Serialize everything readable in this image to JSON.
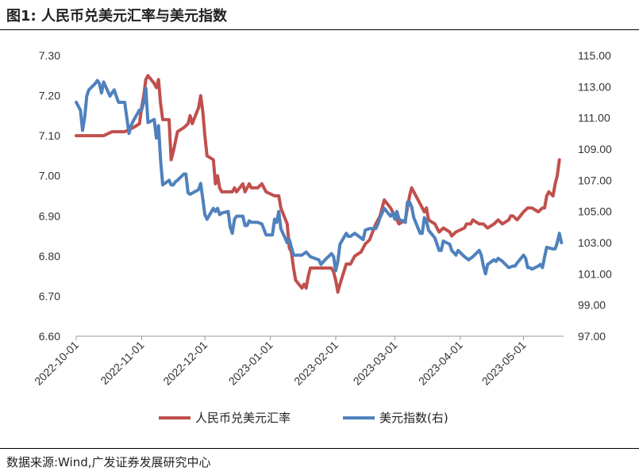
{
  "figure": {
    "title": "图1:   人民币兑美元汇率与美元指数",
    "source": "数据来源:Wind,广发证券发展研究中心"
  },
  "colors": {
    "cny": "#C0504D",
    "dxy": "#4F81BD",
    "axis": "#999999"
  },
  "chart_data": {
    "type": "line",
    "title": "人民币兑美元汇率与美元指数",
    "x_range": [
      "2022-10-01",
      "2023-05-20"
    ],
    "x_ticks": [
      "2022-10-01",
      "2022-11-01",
      "2022-12-01",
      "2023-01-01",
      "2023-02-01",
      "2023-03-01",
      "2023-04-01",
      "2023-05-01"
    ],
    "y_left": {
      "min": 6.6,
      "max": 7.3,
      "ticks": [
        "6.60",
        "6.70",
        "6.80",
        "6.90",
        "7.00",
        "7.10",
        "7.20",
        "7.30"
      ]
    },
    "y_right": {
      "min": 97,
      "max": 115,
      "ticks": [
        "97.00",
        "99.00",
        "101.00",
        "103.00",
        "105.00",
        "107.00",
        "109.00",
        "111.00",
        "113.00",
        "115.00"
      ]
    },
    "legend_position": "bottom",
    "series": [
      {
        "name": "人民币兑美元汇率",
        "axis": "left",
        "points": [
          [
            "2022-10-01",
            7.1
          ],
          [
            "2022-10-10",
            7.1
          ],
          [
            "2022-10-14",
            7.1
          ],
          [
            "2022-10-18",
            7.11
          ],
          [
            "2022-10-24",
            7.11
          ],
          [
            "2022-10-28",
            7.12
          ],
          [
            "2022-10-31",
            7.13
          ],
          [
            "2022-11-01",
            7.17
          ],
          [
            "2022-11-02",
            7.2
          ],
          [
            "2022-11-03",
            7.24
          ],
          [
            "2022-11-04",
            7.25
          ],
          [
            "2022-11-07",
            7.23
          ],
          [
            "2022-11-08",
            7.22
          ],
          [
            "2022-11-09",
            7.24
          ],
          [
            "2022-11-10",
            7.18
          ],
          [
            "2022-11-11",
            7.14
          ],
          [
            "2022-11-14",
            7.14
          ],
          [
            "2022-11-15",
            7.04
          ],
          [
            "2022-11-16",
            7.06
          ],
          [
            "2022-11-18",
            7.11
          ],
          [
            "2022-11-21",
            7.12
          ],
          [
            "2022-11-23",
            7.13
          ],
          [
            "2022-11-24",
            7.15
          ],
          [
            "2022-11-25",
            7.13
          ],
          [
            "2022-11-28",
            7.17
          ],
          [
            "2022-11-29",
            7.2
          ],
          [
            "2022-11-30",
            7.16
          ],
          [
            "2022-12-01",
            7.1
          ],
          [
            "2022-12-02",
            7.05
          ],
          [
            "2022-12-05",
            7.04
          ],
          [
            "2022-12-06",
            6.98
          ],
          [
            "2022-12-07",
            7.0
          ],
          [
            "2022-12-08",
            6.97
          ],
          [
            "2022-12-09",
            6.96
          ],
          [
            "2022-12-12",
            6.96
          ],
          [
            "2022-12-14",
            6.96
          ],
          [
            "2022-12-15",
            6.97
          ],
          [
            "2022-12-16",
            6.96
          ],
          [
            "2022-12-19",
            6.98
          ],
          [
            "2022-12-20",
            6.96
          ],
          [
            "2022-12-21",
            6.97
          ],
          [
            "2022-12-22",
            6.98
          ],
          [
            "2022-12-23",
            6.97
          ],
          [
            "2022-12-26",
            6.97
          ],
          [
            "2022-12-28",
            6.98
          ],
          [
            "2022-12-30",
            6.96
          ],
          [
            "2023-01-03",
            6.95
          ],
          [
            "2023-01-05",
            6.95
          ],
          [
            "2023-01-06",
            6.92
          ],
          [
            "2023-01-09",
            6.88
          ],
          [
            "2023-01-10",
            6.82
          ],
          [
            "2023-01-11",
            6.81
          ],
          [
            "2023-01-12",
            6.77
          ],
          [
            "2023-01-13",
            6.74
          ],
          [
            "2023-01-16",
            6.72
          ],
          [
            "2023-01-17",
            6.73
          ],
          [
            "2023-01-18",
            6.72
          ],
          [
            "2023-01-19",
            6.75
          ],
          [
            "2023-01-20",
            6.77
          ],
          [
            "2023-01-25",
            6.77
          ],
          [
            "2023-01-30",
            6.77
          ],
          [
            "2023-01-31",
            6.76
          ],
          [
            "2023-02-01",
            6.74
          ],
          [
            "2023-02-02",
            6.71
          ],
          [
            "2023-02-03",
            6.73
          ],
          [
            "2023-02-06",
            6.78
          ],
          [
            "2023-02-08",
            6.78
          ],
          [
            "2023-02-10",
            6.8
          ],
          [
            "2023-02-13",
            6.81
          ],
          [
            "2023-02-15",
            6.83
          ],
          [
            "2023-02-17",
            6.84
          ],
          [
            "2023-02-20",
            6.88
          ],
          [
            "2023-02-22",
            6.9
          ],
          [
            "2023-02-24",
            6.94
          ],
          [
            "2023-02-27",
            6.92
          ],
          [
            "2023-02-28",
            6.91
          ],
          [
            "2023-03-01",
            6.9
          ],
          [
            "2023-03-03",
            6.88
          ],
          [
            "2023-03-06",
            6.89
          ],
          [
            "2023-03-08",
            6.95
          ],
          [
            "2023-03-09",
            6.97
          ],
          [
            "2023-03-10",
            6.96
          ],
          [
            "2023-03-13",
            6.93
          ],
          [
            "2023-03-15",
            6.91
          ],
          [
            "2023-03-16",
            6.92
          ],
          [
            "2023-03-17",
            6.89
          ],
          [
            "2023-03-20",
            6.88
          ],
          [
            "2023-03-21",
            6.87
          ],
          [
            "2023-03-22",
            6.86
          ],
          [
            "2023-03-24",
            6.87
          ],
          [
            "2023-03-27",
            6.86
          ],
          [
            "2023-03-28",
            6.85
          ],
          [
            "2023-03-30",
            6.86
          ],
          [
            "2023-04-03",
            6.87
          ],
          [
            "2023-04-04",
            6.88
          ],
          [
            "2023-04-06",
            6.88
          ],
          [
            "2023-04-07",
            6.89
          ],
          [
            "2023-04-10",
            6.88
          ],
          [
            "2023-04-12",
            6.88
          ],
          [
            "2023-04-14",
            6.87
          ],
          [
            "2023-04-17",
            6.88
          ],
          [
            "2023-04-19",
            6.89
          ],
          [
            "2023-04-21",
            6.88
          ],
          [
            "2023-04-24",
            6.89
          ],
          [
            "2023-04-25",
            6.9
          ],
          [
            "2023-04-26",
            6.9
          ],
          [
            "2023-04-28",
            6.89
          ],
          [
            "2023-05-01",
            6.91
          ],
          [
            "2023-05-03",
            6.92
          ],
          [
            "2023-05-05",
            6.92
          ],
          [
            "2023-05-08",
            6.91
          ],
          [
            "2023-05-10",
            6.92
          ],
          [
            "2023-05-11",
            6.92
          ],
          [
            "2023-05-12",
            6.95
          ],
          [
            "2023-05-13",
            6.96
          ],
          [
            "2023-05-15",
            6.95
          ],
          [
            "2023-05-16",
            6.98
          ],
          [
            "2023-05-17",
            7.0
          ],
          [
            "2023-05-18",
            7.04
          ]
        ]
      },
      {
        "name": "美元指数(右)",
        "axis": "right",
        "points": [
          [
            "2022-10-01",
            112.0
          ],
          [
            "2022-10-03",
            111.5
          ],
          [
            "2022-10-04",
            110.2
          ],
          [
            "2022-10-05",
            111.0
          ],
          [
            "2022-10-06",
            112.4
          ],
          [
            "2022-10-07",
            112.8
          ],
          [
            "2022-10-10",
            113.2
          ],
          [
            "2022-10-11",
            113.4
          ],
          [
            "2022-10-12",
            113.2
          ],
          [
            "2022-10-13",
            112.6
          ],
          [
            "2022-10-14",
            113.3
          ],
          [
            "2022-10-17",
            112.4
          ],
          [
            "2022-10-19",
            112.8
          ],
          [
            "2022-10-21",
            112.0
          ],
          [
            "2022-10-24",
            112.0
          ],
          [
            "2022-10-25",
            111.0
          ],
          [
            "2022-10-26",
            110.0
          ],
          [
            "2022-10-27",
            110.5
          ],
          [
            "2022-10-28",
            110.8
          ],
          [
            "2022-10-31",
            111.5
          ],
          [
            "2022-11-01",
            111.5
          ],
          [
            "2022-11-02",
            112.0
          ],
          [
            "2022-11-03",
            112.9
          ],
          [
            "2022-11-04",
            110.7
          ],
          [
            "2022-11-07",
            110.9
          ],
          [
            "2022-11-08",
            109.7
          ],
          [
            "2022-11-09",
            110.5
          ],
          [
            "2022-11-10",
            108.3
          ],
          [
            "2022-11-11",
            106.7
          ],
          [
            "2022-11-14",
            107.0
          ],
          [
            "2022-11-15",
            106.7
          ],
          [
            "2022-11-16",
            106.7
          ],
          [
            "2022-11-17",
            106.9
          ],
          [
            "2022-11-18",
            107.0
          ],
          [
            "2022-11-21",
            107.4
          ],
          [
            "2022-11-22",
            107.4
          ],
          [
            "2022-11-23",
            106.2
          ],
          [
            "2022-11-24",
            106.1
          ],
          [
            "2022-11-28",
            106.4
          ],
          [
            "2022-11-29",
            106.8
          ],
          [
            "2022-11-30",
            105.8
          ],
          [
            "2022-12-01",
            104.8
          ],
          [
            "2022-12-02",
            104.5
          ],
          [
            "2022-12-05",
            105.2
          ],
          [
            "2022-12-06",
            105.0
          ],
          [
            "2022-12-07",
            105.2
          ],
          [
            "2022-12-08",
            104.8
          ],
          [
            "2022-12-09",
            104.9
          ],
          [
            "2022-12-12",
            105.0
          ],
          [
            "2022-12-13",
            104.0
          ],
          [
            "2022-12-14",
            103.6
          ],
          [
            "2022-12-15",
            104.5
          ],
          [
            "2022-12-16",
            104.7
          ],
          [
            "2022-12-19",
            104.7
          ],
          [
            "2022-12-20",
            104.1
          ],
          [
            "2022-12-21",
            104.1
          ],
          [
            "2022-12-22",
            104.4
          ],
          [
            "2022-12-23",
            104.3
          ],
          [
            "2022-12-26",
            104.3
          ],
          [
            "2022-12-28",
            104.2
          ],
          [
            "2022-12-30",
            103.5
          ],
          [
            "2023-01-02",
            103.5
          ],
          [
            "2023-01-03",
            104.5
          ],
          [
            "2023-01-04",
            104.3
          ],
          [
            "2023-01-05",
            105.0
          ],
          [
            "2023-01-06",
            103.9
          ],
          [
            "2023-01-09",
            103.0
          ],
          [
            "2023-01-10",
            103.2
          ],
          [
            "2023-01-12",
            102.2
          ],
          [
            "2023-01-13",
            102.2
          ],
          [
            "2023-01-16",
            102.2
          ],
          [
            "2023-01-18",
            102.4
          ],
          [
            "2023-01-20",
            102.1
          ],
          [
            "2023-01-24",
            101.9
          ],
          [
            "2023-01-25",
            101.6
          ],
          [
            "2023-01-27",
            101.9
          ],
          [
            "2023-01-30",
            102.3
          ],
          [
            "2023-01-31",
            102.1
          ],
          [
            "2023-02-01",
            101.2
          ],
          [
            "2023-02-02",
            101.8
          ],
          [
            "2023-02-03",
            102.9
          ],
          [
            "2023-02-06",
            103.6
          ],
          [
            "2023-02-07",
            103.4
          ],
          [
            "2023-02-08",
            103.4
          ],
          [
            "2023-02-10",
            103.6
          ],
          [
            "2023-02-13",
            103.3
          ],
          [
            "2023-02-14",
            103.2
          ],
          [
            "2023-02-15",
            103.8
          ],
          [
            "2023-02-17",
            103.9
          ],
          [
            "2023-02-20",
            103.9
          ],
          [
            "2023-02-21",
            104.2
          ],
          [
            "2023-02-22",
            104.6
          ],
          [
            "2023-02-24",
            105.2
          ],
          [
            "2023-02-27",
            104.7
          ],
          [
            "2023-02-28",
            104.9
          ],
          [
            "2023-03-01",
            104.5
          ],
          [
            "2023-03-02",
            105.0
          ],
          [
            "2023-03-03",
            104.5
          ],
          [
            "2023-03-06",
            104.3
          ],
          [
            "2023-03-07",
            105.6
          ],
          [
            "2023-03-08",
            105.6
          ],
          [
            "2023-03-09",
            105.3
          ],
          [
            "2023-03-10",
            104.6
          ],
          [
            "2023-03-13",
            103.6
          ],
          [
            "2023-03-14",
            103.6
          ],
          [
            "2023-03-15",
            104.6
          ],
          [
            "2023-03-16",
            104.4
          ],
          [
            "2023-03-17",
            103.8
          ],
          [
            "2023-03-20",
            103.3
          ],
          [
            "2023-03-22",
            102.5
          ],
          [
            "2023-03-23",
            102.5
          ],
          [
            "2023-03-24",
            103.1
          ],
          [
            "2023-03-27",
            102.9
          ],
          [
            "2023-03-28",
            102.5
          ],
          [
            "2023-03-30",
            102.2
          ],
          [
            "2023-03-31",
            102.5
          ],
          [
            "2023-04-03",
            102.1
          ],
          [
            "2023-04-05",
            101.9
          ],
          [
            "2023-04-07",
            102.1
          ],
          [
            "2023-04-10",
            102.5
          ],
          [
            "2023-04-11",
            102.2
          ],
          [
            "2023-04-12",
            101.5
          ],
          [
            "2023-04-13",
            101.0
          ],
          [
            "2023-04-14",
            101.6
          ],
          [
            "2023-04-17",
            101.9
          ],
          [
            "2023-04-18",
            101.8
          ],
          [
            "2023-04-19",
            102.0
          ],
          [
            "2023-04-20",
            101.9
          ],
          [
            "2023-04-21",
            101.8
          ],
          [
            "2023-04-24",
            101.4
          ],
          [
            "2023-04-26",
            101.5
          ],
          [
            "2023-04-27",
            101.5
          ],
          [
            "2023-04-28",
            101.7
          ],
          [
            "2023-05-01",
            102.2
          ],
          [
            "2023-05-02",
            102.0
          ],
          [
            "2023-05-03",
            101.4
          ],
          [
            "2023-05-04",
            101.4
          ],
          [
            "2023-05-05",
            101.3
          ],
          [
            "2023-05-08",
            101.5
          ],
          [
            "2023-05-09",
            101.6
          ],
          [
            "2023-05-10",
            101.4
          ],
          [
            "2023-05-11",
            102.1
          ],
          [
            "2023-05-12",
            102.7
          ],
          [
            "2023-05-15",
            102.6
          ],
          [
            "2023-05-16",
            102.6
          ],
          [
            "2023-05-17",
            103.0
          ],
          [
            "2023-05-18",
            103.6
          ],
          [
            "2023-05-19",
            103.0
          ]
        ]
      }
    ]
  }
}
